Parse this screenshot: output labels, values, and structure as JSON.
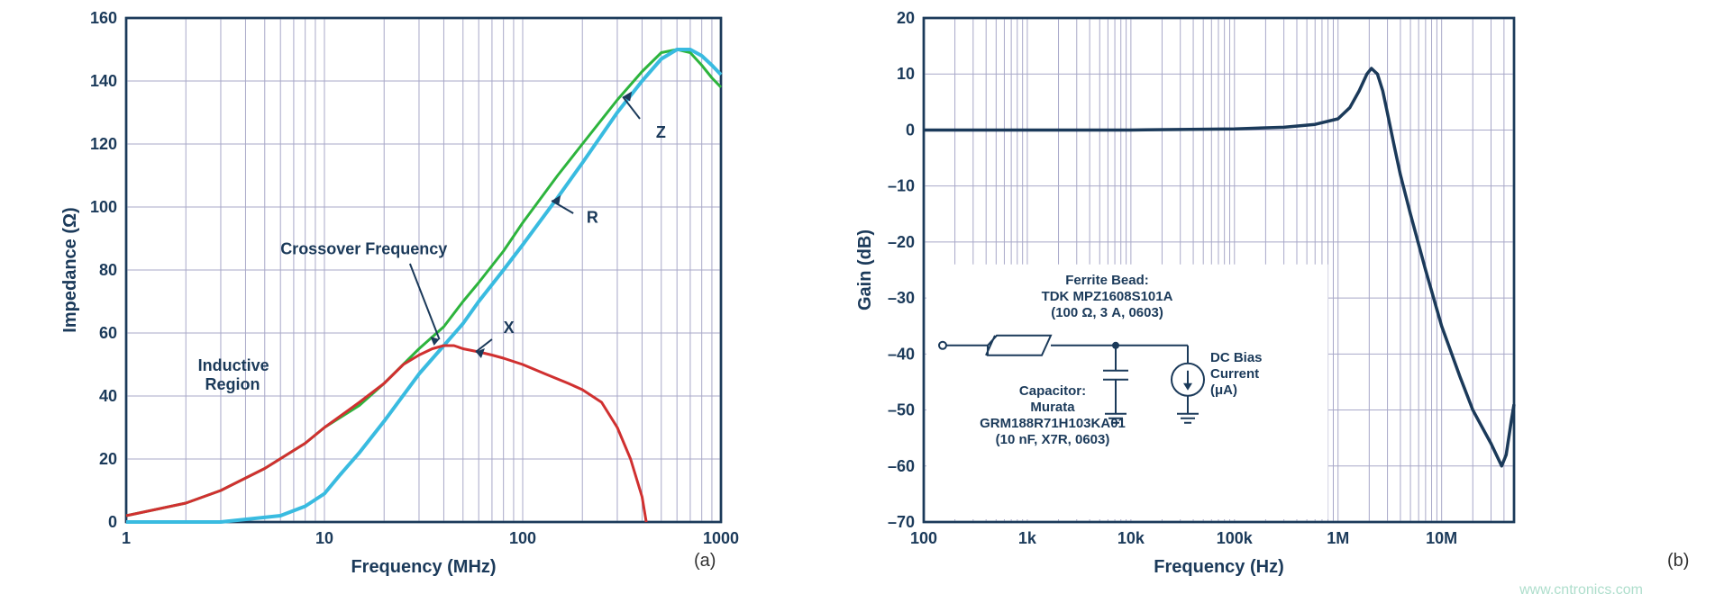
{
  "chart_a": {
    "type": "line-log-x",
    "xlabel": "Frequency (MHz)",
    "ylabel": "Impedance (Ω)",
    "xlim": [
      1,
      1000
    ],
    "ylim": [
      0,
      160
    ],
    "ytick_step": 20,
    "yticks": [
      0,
      20,
      40,
      60,
      80,
      100,
      120,
      140,
      160
    ],
    "xticks": [
      1,
      10,
      100,
      1000
    ],
    "background": "#ffffff",
    "grid_color": "#a8a8c8",
    "border_color": "#1b3a5a",
    "label_color": "#1b3a5a",
    "panel_label": "(a)",
    "annotations": {
      "inductive_region": "Inductive\nRegion",
      "crossover": "Crossover Frequency",
      "z_label": "Z",
      "r_label": "R",
      "x_label": "X"
    },
    "series": {
      "Z": {
        "color": "#2db43d",
        "width": 3,
        "points": [
          [
            1,
            2
          ],
          [
            2,
            6
          ],
          [
            3,
            10
          ],
          [
            5,
            17
          ],
          [
            8,
            25
          ],
          [
            10,
            30
          ],
          [
            15,
            37
          ],
          [
            20,
            44
          ],
          [
            30,
            55
          ],
          [
            40,
            62
          ],
          [
            50,
            70
          ],
          [
            60,
            76
          ],
          [
            80,
            86
          ],
          [
            100,
            95
          ],
          [
            150,
            110
          ],
          [
            200,
            120
          ],
          [
            300,
            134
          ],
          [
            400,
            143
          ],
          [
            500,
            149
          ],
          [
            600,
            150
          ],
          [
            700,
            149
          ],
          [
            800,
            145
          ],
          [
            900,
            141
          ],
          [
            1000,
            138
          ]
        ]
      },
      "R": {
        "color": "#39bbe0",
        "width": 4,
        "points": [
          [
            1,
            0
          ],
          [
            3,
            0
          ],
          [
            6,
            2
          ],
          [
            8,
            5
          ],
          [
            10,
            9
          ],
          [
            12,
            15
          ],
          [
            15,
            22
          ],
          [
            20,
            32
          ],
          [
            30,
            47
          ],
          [
            40,
            56
          ],
          [
            50,
            63
          ],
          [
            60,
            70
          ],
          [
            80,
            80
          ],
          [
            100,
            88
          ],
          [
            150,
            103
          ],
          [
            200,
            114
          ],
          [
            300,
            130
          ],
          [
            400,
            140
          ],
          [
            500,
            147
          ],
          [
            600,
            150
          ],
          [
            700,
            150
          ],
          [
            800,
            148
          ],
          [
            900,
            145
          ],
          [
            1000,
            142
          ]
        ]
      },
      "X": {
        "color": "#d03030",
        "width": 3,
        "points": [
          [
            1,
            2
          ],
          [
            2,
            6
          ],
          [
            3,
            10
          ],
          [
            5,
            17
          ],
          [
            8,
            25
          ],
          [
            10,
            30
          ],
          [
            15,
            38
          ],
          [
            20,
            44
          ],
          [
            25,
            50
          ],
          [
            30,
            53
          ],
          [
            35,
            55
          ],
          [
            40,
            56
          ],
          [
            45,
            56
          ],
          [
            50,
            55
          ],
          [
            60,
            54
          ],
          [
            70,
            53
          ],
          [
            80,
            52
          ],
          [
            100,
            50
          ],
          [
            130,
            47
          ],
          [
            170,
            44
          ],
          [
            200,
            42
          ],
          [
            250,
            38
          ],
          [
            300,
            30
          ],
          [
            350,
            20
          ],
          [
            400,
            8
          ],
          [
            420,
            0
          ]
        ]
      }
    }
  },
  "chart_b": {
    "type": "line-log-x",
    "xlabel": "Frequency (Hz)",
    "ylabel": "Gain (dB)",
    "xlim": [
      100,
      50000000
    ],
    "ylim": [
      -70,
      20
    ],
    "ytick_step": 10,
    "yticks": [
      -70,
      -60,
      -50,
      -40,
      -30,
      -20,
      -10,
      0,
      10,
      20
    ],
    "xticks": [
      100,
      1000,
      10000,
      100000,
      1000000,
      10000000
    ],
    "xtick_labels": [
      "100",
      "1k",
      "10k",
      "100k",
      "1M",
      "10M"
    ],
    "background": "#ffffff",
    "grid_color": "#a8a8c8",
    "border_color": "#1b3a5a",
    "label_color": "#1b3a5a",
    "panel_label": "(b)",
    "series": {
      "gain": {
        "color": "#1b3a5a",
        "width": 3.5,
        "points": [
          [
            100,
            0
          ],
          [
            1000,
            0
          ],
          [
            10000,
            0
          ],
          [
            100000,
            0.2
          ],
          [
            300000,
            0.5
          ],
          [
            600000,
            1
          ],
          [
            1000000,
            2
          ],
          [
            1300000,
            4
          ],
          [
            1600000,
            7
          ],
          [
            1900000,
            10
          ],
          [
            2100000,
            11
          ],
          [
            2400000,
            10
          ],
          [
            2700000,
            7
          ],
          [
            3000000,
            3
          ],
          [
            3500000,
            -3
          ],
          [
            4000000,
            -8
          ],
          [
            5000000,
            -15
          ],
          [
            7000000,
            -25
          ],
          [
            10000000,
            -35
          ],
          [
            15000000,
            -44
          ],
          [
            20000000,
            -50
          ],
          [
            30000000,
            -56
          ],
          [
            38000000,
            -60
          ],
          [
            42000000,
            -58
          ],
          [
            47000000,
            -52
          ],
          [
            50000000,
            -49
          ]
        ]
      }
    },
    "inset": {
      "ferrite_title": "Ferrite Bead:",
      "ferrite_part": "TDK MPZ1608S101A",
      "ferrite_spec": "(100 Ω, 3 A, 0603)",
      "capacitor_title": "Capacitor:",
      "capacitor_brand": "Murata",
      "capacitor_part": "GRM188R71H103KA01",
      "capacitor_spec": "(10 nF, X7R, 0603)",
      "dc_bias_1": "DC Bias",
      "dc_bias_2": "Current",
      "dc_bias_3": "(μA)"
    }
  },
  "watermark": "www.cntronics.com"
}
